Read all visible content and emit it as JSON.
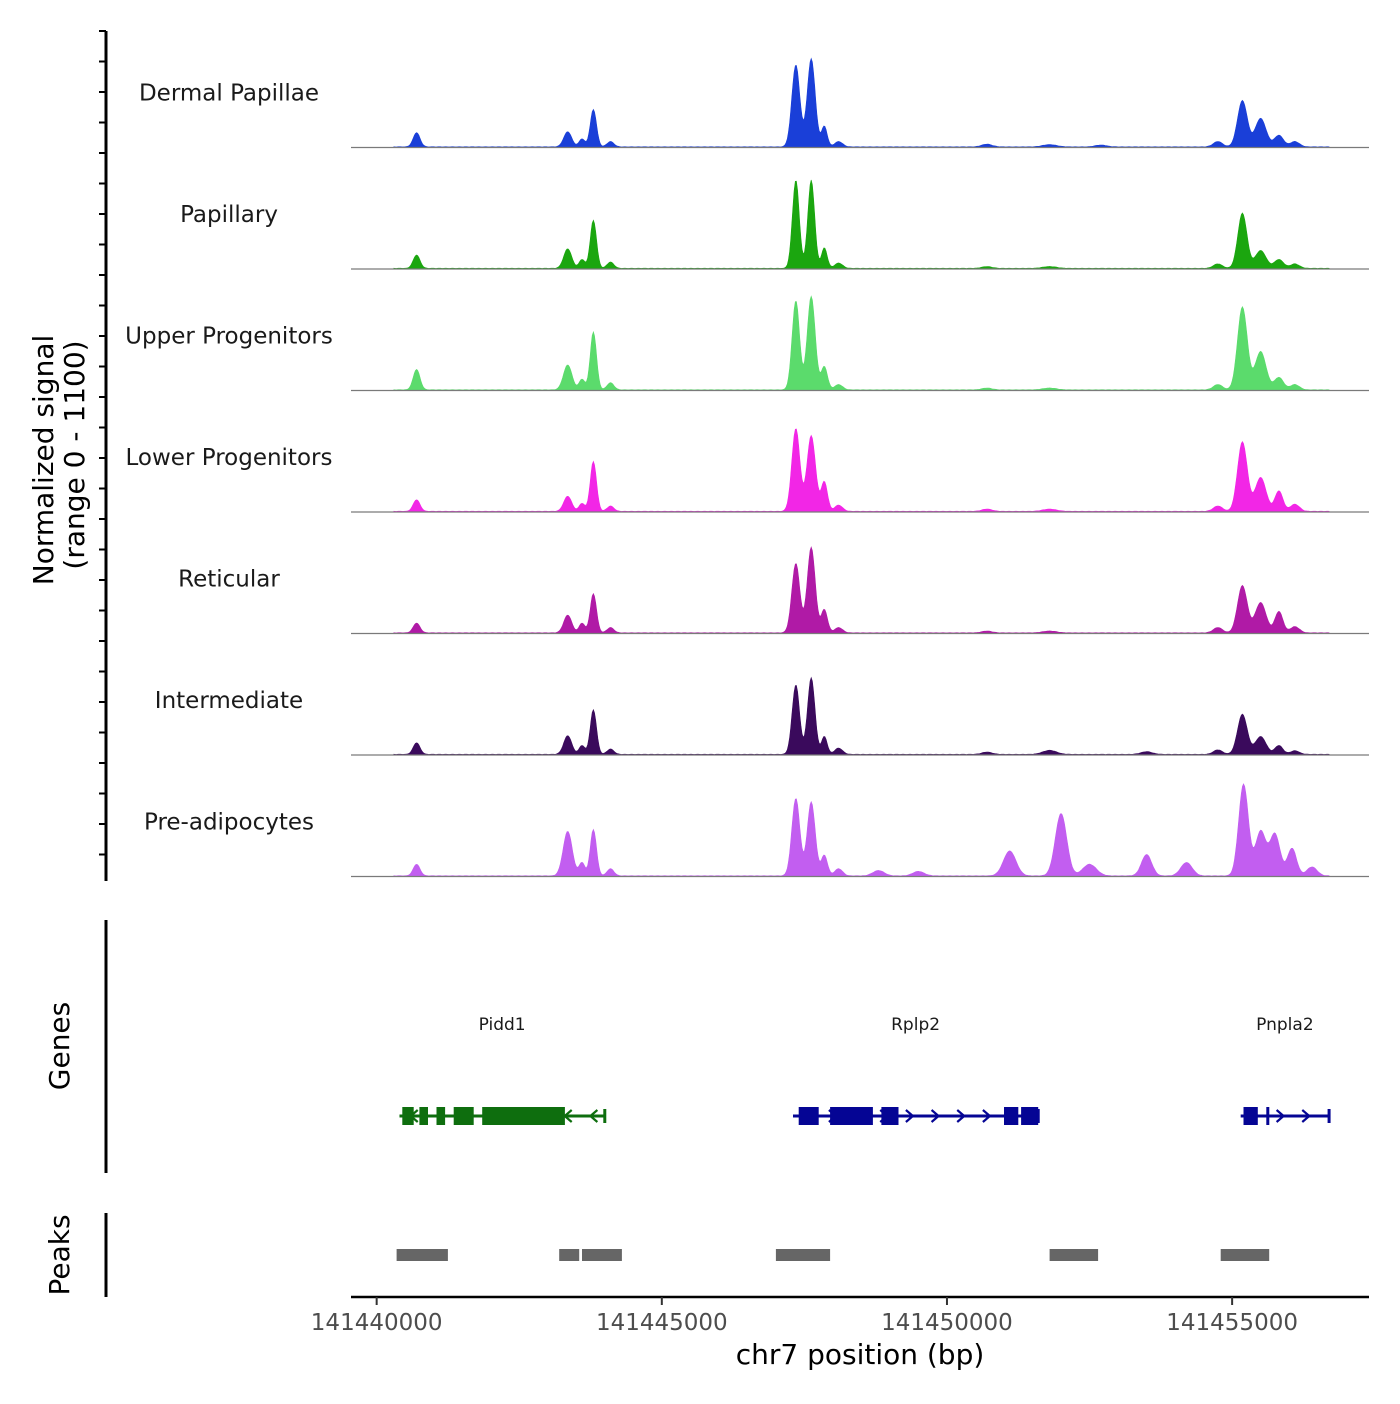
{
  "chart_data": {
    "type": "area",
    "title": "",
    "chromosome": "chr7",
    "xlabel": "chr7 position (bp)",
    "ylabel_line1": "Normalized signal",
    "ylabel_line2": "(range 0 - 1100)",
    "ylim": [
      0,
      1100
    ],
    "xlim": [
      141439550,
      141457400
    ],
    "xticks": [
      141440000,
      141445000,
      141450000,
      141455000
    ],
    "xtick_labels": [
      "141440000",
      "141445000",
      "141450000",
      "141455000"
    ],
    "tracks": [
      {
        "name": "Dermal Papillae",
        "color": "#1a3fd8",
        "peaks": [
          [
            141440700,
            160,
            60
          ],
          [
            141443350,
            170,
            70
          ],
          [
            141443600,
            90,
            50
          ],
          [
            141443800,
            420,
            55
          ],
          [
            141444100,
            60,
            60
          ],
          [
            141447350,
            920,
            70
          ],
          [
            141447620,
            990,
            70
          ],
          [
            141447850,
            230,
            50
          ],
          [
            141448100,
            60,
            70
          ],
          [
            141450700,
            30,
            90
          ],
          [
            141451800,
            25,
            120
          ],
          [
            141452700,
            20,
            100
          ],
          [
            141454750,
            60,
            80
          ],
          [
            141455180,
            520,
            85
          ],
          [
            141455500,
            320,
            95
          ],
          [
            141455820,
            130,
            80
          ],
          [
            141456100,
            60,
            80
          ]
        ]
      },
      {
        "name": "Papillary",
        "color": "#1ba60f",
        "peaks": [
          [
            141440700,
            150,
            60
          ],
          [
            141443350,
            220,
            70
          ],
          [
            141443600,
            100,
            50
          ],
          [
            141443800,
            540,
            55
          ],
          [
            141444100,
            70,
            60
          ],
          [
            141447350,
            990,
            60
          ],
          [
            141447620,
            990,
            60
          ],
          [
            141447850,
            230,
            50
          ],
          [
            141448100,
            60,
            70
          ],
          [
            141450700,
            20,
            90
          ],
          [
            141451800,
            20,
            120
          ],
          [
            141454750,
            50,
            80
          ],
          [
            141455180,
            620,
            80
          ],
          [
            141455500,
            200,
            95
          ],
          [
            141455820,
            100,
            80
          ],
          [
            141456100,
            50,
            80
          ]
        ]
      },
      {
        "name": "Upper Progenitors",
        "color": "#5bdb6c",
        "peaks": [
          [
            141440700,
            230,
            60
          ],
          [
            141443350,
            280,
            75
          ],
          [
            141443600,
            120,
            50
          ],
          [
            141443800,
            650,
            55
          ],
          [
            141444100,
            80,
            60
          ],
          [
            141447350,
            1000,
            65
          ],
          [
            141447620,
            1050,
            70
          ],
          [
            141447850,
            260,
            55
          ],
          [
            141448100,
            60,
            70
          ],
          [
            141450700,
            20,
            90
          ],
          [
            141451800,
            20,
            120
          ],
          [
            141454750,
            60,
            80
          ],
          [
            141455180,
            930,
            85
          ],
          [
            141455500,
            430,
            95
          ],
          [
            141455820,
            140,
            80
          ],
          [
            141456100,
            60,
            80
          ]
        ]
      },
      {
        "name": "Lower Progenitors",
        "color": "#f226e6",
        "peaks": [
          [
            141440700,
            130,
            60
          ],
          [
            141443350,
            170,
            70
          ],
          [
            141443600,
            90,
            50
          ],
          [
            141443800,
            560,
            55
          ],
          [
            141444100,
            60,
            60
          ],
          [
            141447350,
            930,
            70
          ],
          [
            141447620,
            850,
            75
          ],
          [
            141447850,
            330,
            55
          ],
          [
            141448100,
            70,
            70
          ],
          [
            141450700,
            25,
            90
          ],
          [
            141451800,
            25,
            120
          ],
          [
            141454750,
            60,
            80
          ],
          [
            141455180,
            780,
            85
          ],
          [
            141455500,
            380,
            95
          ],
          [
            141455820,
            230,
            70
          ],
          [
            141456100,
            80,
            80
          ]
        ]
      },
      {
        "name": "Reticular",
        "color": "#b01aa6",
        "peaks": [
          [
            141440700,
            110,
            60
          ],
          [
            141443350,
            200,
            70
          ],
          [
            141443600,
            110,
            50
          ],
          [
            141443800,
            440,
            55
          ],
          [
            141444100,
            60,
            60
          ],
          [
            141447350,
            780,
            70
          ],
          [
            141447620,
            960,
            70
          ],
          [
            141447850,
            260,
            55
          ],
          [
            141448100,
            60,
            70
          ],
          [
            141450700,
            20,
            90
          ],
          [
            141451800,
            20,
            120
          ],
          [
            141454750,
            60,
            80
          ],
          [
            141455180,
            530,
            85
          ],
          [
            141455500,
            340,
            95
          ],
          [
            141455820,
            240,
            70
          ],
          [
            141456100,
            70,
            80
          ]
        ]
      },
      {
        "name": "Intermediate",
        "color": "#3a0a5c",
        "peaks": [
          [
            141440700,
            130,
            60
          ],
          [
            141443350,
            210,
            70
          ],
          [
            141443600,
            100,
            50
          ],
          [
            141443800,
            500,
            55
          ],
          [
            141444100,
            60,
            60
          ],
          [
            141447350,
            780,
            65
          ],
          [
            141447620,
            860,
            65
          ],
          [
            141447850,
            200,
            50
          ],
          [
            141448100,
            70,
            70
          ],
          [
            141450700,
            25,
            90
          ],
          [
            141451800,
            45,
            120
          ],
          [
            141453500,
            30,
            100
          ],
          [
            141454750,
            50,
            80
          ],
          [
            141455180,
            450,
            85
          ],
          [
            141455500,
            200,
            95
          ],
          [
            141455820,
            100,
            70
          ],
          [
            141456100,
            40,
            80
          ]
        ]
      },
      {
        "name": "Pre-adipocytes",
        "color": "#c25ef0",
        "peaks": [
          [
            141440700,
            130,
            60
          ],
          [
            141443350,
            500,
            80
          ],
          [
            141443600,
            150,
            50
          ],
          [
            141443800,
            520,
            55
          ],
          [
            141444100,
            80,
            60
          ],
          [
            141447350,
            870,
            70
          ],
          [
            141447620,
            830,
            70
          ],
          [
            141447850,
            230,
            55
          ],
          [
            141448100,
            80,
            70
          ],
          [
            141448800,
            60,
            100
          ],
          [
            141449500,
            50,
            100
          ],
          [
            141451100,
            280,
            110
          ],
          [
            141452000,
            700,
            100
          ],
          [
            141452500,
            130,
            120
          ],
          [
            141453500,
            240,
            90
          ],
          [
            141454200,
            150,
            100
          ],
          [
            141455200,
            1030,
            85
          ],
          [
            141455500,
            500,
            90
          ],
          [
            141455750,
            470,
            90
          ],
          [
            141456050,
            310,
            80
          ],
          [
            141456400,
            100,
            90
          ]
        ]
      }
    ],
    "genes": [
      {
        "name": "Pidd1",
        "color": "#0e6e0e",
        "strand": "-",
        "start": 141440400,
        "end": 141444000,
        "exons": [
          [
            141440450,
            141440650
          ],
          [
            141440750,
            141440900
          ],
          [
            141441050,
            141441200
          ],
          [
            141441350,
            141441700
          ],
          [
            141441850,
            141443300
          ]
        ]
      },
      {
        "name": "Rplp2",
        "color": "#050594",
        "strand": "+",
        "start": 141447300,
        "end": 141451600,
        "exons": [
          [
            141447400,
            141447750
          ],
          [
            141447950,
            141448700
          ],
          [
            141448850,
            141449150
          ],
          [
            141451000,
            141451250
          ],
          [
            141451300,
            141451600
          ]
        ]
      },
      {
        "name": "Pnpla2",
        "color": "#050594",
        "strand": "+",
        "start": 141455150,
        "end": 141456700,
        "exons": [
          [
            141455200,
            141455450
          ],
          [
            141455600,
            141455650
          ]
        ]
      }
    ],
    "peaks_track": [
      [
        141440350,
        141441250
      ],
      [
        141443200,
        141443550
      ],
      [
        141443600,
        141444300
      ],
      [
        141447000,
        141447950
      ],
      [
        141451800,
        141452650
      ],
      [
        141454800,
        141455650
      ]
    ],
    "panel_labels": {
      "genes": "Genes",
      "peaks": "Peaks"
    }
  }
}
